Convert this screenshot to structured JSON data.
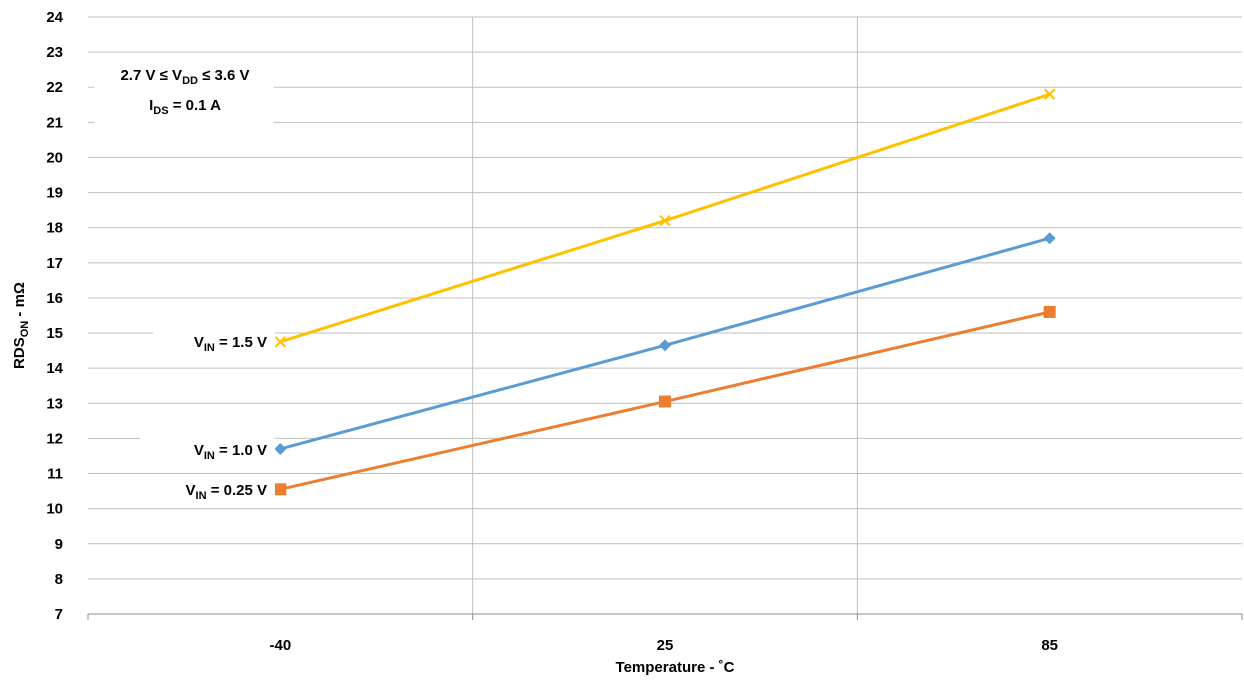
{
  "chart_data": {
    "type": "line",
    "x_categories": [
      "-40",
      "25",
      "85"
    ],
    "xlabel": "Temperature - ˚C",
    "ylabel": {
      "main": "RDS",
      "sub": "ON",
      "rest": " - mΩ"
    },
    "ylim": [
      7,
      24
    ],
    "yticks": [
      7,
      8,
      9,
      10,
      11,
      12,
      13,
      14,
      15,
      16,
      17,
      18,
      19,
      20,
      21,
      22,
      23,
      24
    ],
    "grid": true,
    "series": [
      {
        "name": {
          "prefix": "V",
          "sub": "IN",
          "suffix": " = 1.5 V"
        },
        "color": "#FFC000",
        "marker": "x",
        "values": [
          14.75,
          18.2,
          21.8
        ]
      },
      {
        "name": {
          "prefix": "V",
          "sub": "IN",
          "suffix": " = 1.0 V"
        },
        "color": "#5B9BD5",
        "marker": "diamond",
        "values": [
          11.7,
          14.65,
          17.7
        ]
      },
      {
        "name": {
          "prefix": "V",
          "sub": "IN",
          "suffix": " = 0.25 V"
        },
        "color": "#ED7D31",
        "marker": "square",
        "values": [
          10.55,
          13.05,
          15.6
        ]
      }
    ],
    "annotation": {
      "line1": {
        "a": "2.7 V ≤ V",
        "sub": "DD",
        "b": " ≤ 3.6 V"
      },
      "line2": {
        "a": "I",
        "sub": "DS",
        "b": " = 0.1 A"
      }
    }
  }
}
